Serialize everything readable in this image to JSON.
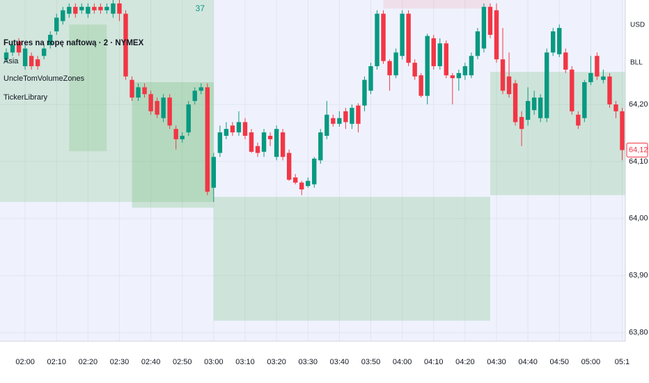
{
  "chart_data": {
    "type": "candlestick",
    "title": "Futures na ropę naftową · 2 · NYMEX",
    "indicators": [
      "Asia",
      "UncleTomVolumeZones",
      "TickerLibrary"
    ],
    "annotation": "37",
    "currency": "USD",
    "unit": "BLL",
    "x": [
      "01:54",
      "01:56",
      "01:58",
      "02:00",
      "02:02",
      "02:04",
      "02:06",
      "02:08",
      "02:10",
      "02:12",
      "02:14",
      "02:16",
      "02:18",
      "02:20",
      "02:22",
      "02:24",
      "02:26",
      "02:28",
      "02:30",
      "02:32",
      "02:34",
      "02:36",
      "02:38",
      "02:40",
      "02:42",
      "02:44",
      "02:46",
      "02:48",
      "02:50",
      "02:52",
      "02:54",
      "02:56",
      "02:58",
      "03:00",
      "03:02",
      "03:04",
      "03:06",
      "03:08",
      "03:10",
      "03:12",
      "03:14",
      "03:16",
      "03:18",
      "03:20",
      "03:22",
      "03:24",
      "03:26",
      "03:28",
      "03:30",
      "03:32",
      "03:34",
      "03:36",
      "03:38",
      "03:40",
      "03:42",
      "03:44",
      "03:46",
      "03:48",
      "03:50",
      "03:52",
      "03:54",
      "03:56",
      "03:58",
      "04:00",
      "04:02",
      "04:04",
      "04:06",
      "04:08",
      "04:10",
      "04:12",
      "04:14",
      "04:16",
      "04:18",
      "04:20",
      "04:22",
      "04:24",
      "04:26",
      "04:28",
      "04:30",
      "04:32",
      "04:34",
      "04:36",
      "04:38",
      "04:40",
      "04:42",
      "04:44",
      "04:46",
      "04:48",
      "04:50",
      "04:52",
      "04:54",
      "04:56",
      "04:58",
      "05:00",
      "05:02",
      "05:04",
      "05:06",
      "05:08",
      "05:10"
    ],
    "open": [
      64.279,
      64.291,
      64.31,
      64.267,
      64.285,
      64.279,
      64.285,
      64.304,
      64.328,
      64.346,
      64.359,
      64.371,
      64.365,
      64.359,
      64.371,
      64.371,
      64.365,
      64.359,
      64.377,
      64.359,
      64.243,
      64.212,
      64.23,
      64.218,
      64.206,
      64.176,
      64.212,
      64.157,
      64.139,
      64.151,
      64.206,
      64.224,
      64.23,
      64.054,
      64.115,
      64.145,
      64.163,
      64.151,
      64.169,
      64.151,
      64.127,
      64.117,
      64.145,
      64.108,
      64.151,
      64.115,
      64.072,
      64.063,
      64.057,
      64.06,
      64.102,
      64.145,
      64.176,
      64.166,
      64.188,
      64.166,
      64.198,
      64.198,
      64.224,
      64.267,
      64.359,
      64.276,
      64.251,
      64.285,
      64.359,
      64.273,
      64.251,
      64.215,
      64.316,
      64.267,
      64.307,
      64.251,
      64.246,
      64.251,
      64.251,
      64.285,
      64.298,
      64.371,
      64.365,
      64.279,
      64.249,
      64.237,
      64.178,
      64.173,
      64.19,
      64.176,
      64.176,
      64.291,
      64.288,
      64.291,
      64.261,
      64.182,
      64.176,
      64.239,
      64.285,
      64.243,
      64.249,
      64.2,
      64.188
    ],
    "high": [
      64.298,
      64.31,
      64.316,
      64.304,
      64.291,
      64.285,
      64.304,
      64.328,
      64.359,
      64.371,
      64.377,
      64.377,
      64.377,
      64.377,
      64.377,
      64.377,
      64.377,
      64.383,
      64.383,
      64.365,
      64.249,
      64.237,
      64.237,
      64.224,
      64.212,
      64.218,
      64.218,
      64.163,
      64.151,
      64.206,
      64.23,
      64.237,
      64.237,
      64.115,
      64.163,
      64.169,
      64.169,
      64.188,
      64.176,
      64.157,
      64.133,
      64.157,
      64.151,
      64.163,
      64.157,
      64.121,
      64.078,
      64.066,
      64.072,
      64.108,
      64.157,
      64.206,
      64.182,
      64.188,
      64.194,
      64.2,
      64.202,
      64.249,
      64.273,
      64.365,
      64.365,
      64.279,
      64.298,
      64.365,
      64.365,
      64.279,
      64.255,
      64.324,
      64.322,
      64.316,
      64.312,
      64.255,
      64.261,
      64.273,
      64.291,
      64.334,
      64.377,
      64.377,
      64.377,
      64.334,
      64.291,
      64.243,
      64.188,
      64.23,
      64.224,
      64.218,
      64.298,
      64.334,
      64.34,
      64.298,
      64.267,
      64.188,
      64.243,
      64.285,
      64.291,
      64.261,
      64.255,
      64.206,
      64.194
    ],
    "low": [
      64.273,
      64.285,
      64.285,
      64.261,
      64.261,
      64.261,
      64.279,
      64.298,
      64.322,
      64.34,
      64.352,
      64.352,
      64.359,
      64.352,
      64.359,
      64.359,
      64.359,
      64.352,
      64.346,
      64.243,
      64.206,
      64.206,
      64.212,
      64.182,
      64.176,
      64.169,
      64.157,
      64.121,
      64.133,
      64.145,
      64.2,
      64.218,
      64.041,
      64.029,
      64.108,
      64.139,
      64.145,
      64.145,
      64.139,
      64.115,
      64.108,
      64.108,
      64.127,
      64.102,
      64.102,
      64.066,
      64.06,
      64.041,
      64.054,
      64.054,
      64.096,
      64.139,
      64.161,
      64.161,
      64.157,
      64.157,
      64.151,
      64.188,
      64.218,
      64.261,
      64.271,
      64.224,
      64.246,
      64.279,
      64.267,
      64.243,
      64.212,
      64.2,
      64.261,
      64.261,
      64.246,
      64.2,
      64.224,
      64.243,
      64.246,
      64.279,
      64.291,
      64.316,
      64.273,
      64.218,
      64.212,
      64.163,
      64.127,
      64.163,
      64.182,
      64.169,
      64.169,
      64.285,
      64.283,
      64.255,
      64.182,
      64.157,
      64.169,
      64.234,
      64.243,
      64.237,
      64.194,
      64.176,
      64.102
    ],
    "close": [
      64.291,
      64.304,
      64.291,
      64.298,
      64.267,
      64.267,
      64.298,
      64.322,
      64.352,
      64.365,
      64.371,
      64.359,
      64.371,
      64.371,
      64.365,
      64.365,
      64.371,
      64.377,
      64.359,
      64.249,
      64.212,
      64.23,
      64.218,
      64.188,
      64.182,
      64.212,
      64.163,
      64.139,
      64.145,
      64.2,
      64.224,
      64.23,
      64.047,
      64.108,
      64.151,
      64.157,
      64.151,
      64.169,
      64.145,
      64.117,
      64.115,
      64.151,
      64.139,
      64.157,
      64.108,
      64.068,
      64.063,
      64.051,
      64.066,
      64.105,
      64.151,
      64.182,
      64.166,
      64.176,
      64.169,
      64.194,
      64.166,
      64.243,
      64.267,
      64.359,
      64.276,
      64.251,
      64.291,
      64.359,
      64.273,
      64.249,
      64.215,
      64.32,
      64.267,
      64.307,
      64.251,
      64.246,
      64.255,
      64.267,
      64.285,
      64.328,
      64.371,
      64.322,
      64.279,
      64.224,
      64.218,
      64.169,
      64.157,
      64.206,
      64.212,
      64.212,
      64.291,
      64.328,
      64.334,
      64.261,
      64.188,
      64.163,
      64.239,
      64.255,
      64.249,
      64.249,
      64.2,
      64.188,
      64.12
    ],
    "last_price_label": "64,12",
    "up_color": "#089981",
    "down_color": "#f23645",
    "zones": [
      {
        "x0": "01:52",
        "x1": "03:00",
        "y0": 64.029,
        "y1": 64.39,
        "color": "rgba(76,175,80,0.18)"
      },
      {
        "x0": "02:14",
        "x1": "02:26",
        "y0": 64.118,
        "y1": 64.34,
        "color": "rgba(76,175,80,0.18)"
      },
      {
        "x0": "02:34",
        "x1": "03:00",
        "y0": 64.019,
        "y1": 64.239,
        "color": "rgba(76,175,80,0.22)"
      },
      {
        "x0": "03:00",
        "x1": "04:28",
        "y0": 63.821,
        "y1": 64.038,
        "color": "rgba(76,175,80,0.2)"
      },
      {
        "x0": "04:28",
        "x1": "05:11",
        "y0": 64.041,
        "y1": 64.257,
        "color": "rgba(76,175,80,0.2)"
      },
      {
        "x0": "03:54",
        "x1": "04:28",
        "y0": 64.368,
        "y1": 64.39,
        "color": "rgba(242,54,69,0.1)"
      }
    ],
    "xlim": [
      "01:52",
      "05:11"
    ],
    "xticks": [
      "02:00",
      "02:10",
      "02:20",
      "02:30",
      "02:40",
      "02:50",
      "03:00",
      "03:10",
      "03:20",
      "03:30",
      "03:40",
      "03:50",
      "04:00",
      "04:10",
      "04:20",
      "04:30",
      "04:40",
      "04:50",
      "05:00",
      {
        "value": "05:10",
        "label": "05:1"
      }
    ],
    "ylim": [
      63.785,
      64.383
    ],
    "yticks": [
      {
        "value": 63.8,
        "label": "63,80"
      },
      {
        "value": 63.9,
        "label": "63,90"
      },
      {
        "value": 64.0,
        "label": "64,00"
      },
      {
        "value": 64.1,
        "label": "64,10"
      },
      {
        "value": 64.2,
        "label": "64,20"
      }
    ],
    "grid": true
  }
}
